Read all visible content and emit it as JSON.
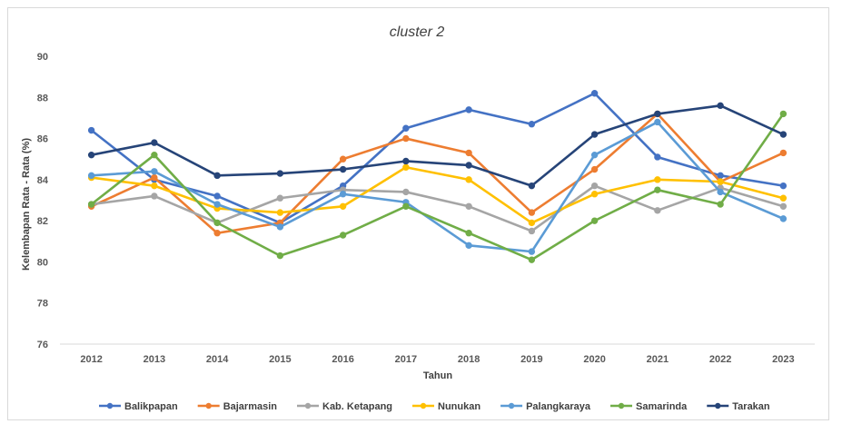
{
  "chart_data": {
    "type": "line",
    "title": "cluster 2",
    "xlabel": "Tahun",
    "ylabel": "Kelembapan Rata - Rata (%)",
    "ylim": [
      76,
      90
    ],
    "yticks": [
      76,
      78,
      80,
      82,
      84,
      86,
      88,
      90
    ],
    "grid": false,
    "legend_position": "bottom",
    "categories": [
      "2012",
      "2013",
      "2014",
      "2015",
      "2016",
      "2017",
      "2018",
      "2019",
      "2020",
      "2021",
      "2022",
      "2023"
    ],
    "series": [
      {
        "name": "Balikpapan",
        "color": "#4472C4",
        "values": [
          86.4,
          84.0,
          83.2,
          81.9,
          83.7,
          86.5,
          87.4,
          86.7,
          88.2,
          85.1,
          84.2,
          83.7
        ]
      },
      {
        "name": "Bajarmasin",
        "color": "#ED7D31",
        "values": [
          82.7,
          84.1,
          81.4,
          81.9,
          85.0,
          86.0,
          85.3,
          82.4,
          84.5,
          87.2,
          83.9,
          85.3
        ]
      },
      {
        "name": "Kab. Ketapang",
        "color": "#A5A5A5",
        "values": [
          82.8,
          83.2,
          81.9,
          83.1,
          83.5,
          83.4,
          82.7,
          81.5,
          83.7,
          82.5,
          83.6,
          82.7
        ]
      },
      {
        "name": "Nunukan",
        "color": "#FFC000",
        "values": [
          84.1,
          83.7,
          82.6,
          82.4,
          82.7,
          84.6,
          84.0,
          81.9,
          83.3,
          84.0,
          83.9,
          83.1
        ]
      },
      {
        "name": "Palangkaraya",
        "color": "#5B9BD5",
        "values": [
          84.2,
          84.4,
          82.8,
          81.7,
          83.3,
          82.9,
          80.8,
          80.5,
          85.2,
          86.8,
          83.4,
          82.1
        ]
      },
      {
        "name": "Samarinda",
        "color": "#70AD47",
        "values": [
          82.8,
          85.2,
          81.9,
          80.3,
          81.3,
          82.7,
          81.4,
          80.1,
          82.0,
          83.5,
          82.8,
          87.2
        ]
      },
      {
        "name": "Tarakan",
        "color": "#264478",
        "values": [
          85.2,
          85.8,
          84.2,
          84.3,
          84.5,
          84.9,
          84.7,
          83.7,
          86.2,
          87.2,
          87.6,
          86.2
        ]
      }
    ]
  }
}
